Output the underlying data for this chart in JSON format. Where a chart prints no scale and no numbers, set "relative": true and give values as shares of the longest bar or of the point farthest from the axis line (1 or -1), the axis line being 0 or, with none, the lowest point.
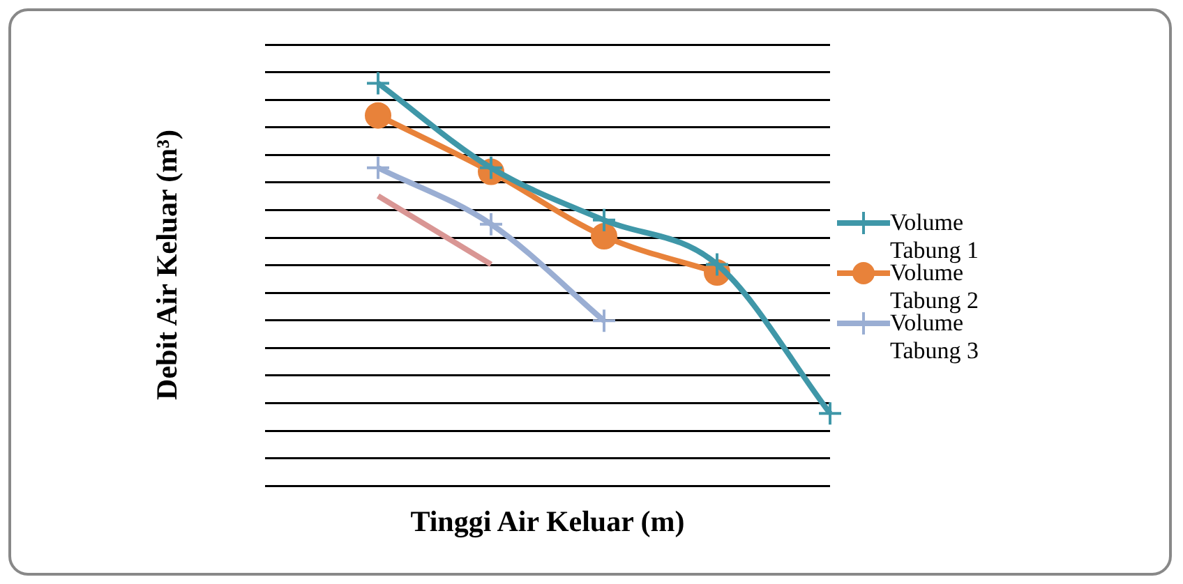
{
  "chart_data": {
    "type": "line",
    "relative": true,
    "xlabel": "Tinggi Air Keluar (m)",
    "ylabel": "Debit Air Keluar (m³)",
    "categories": [
      null,
      null,
      null,
      null,
      null,
      null
    ],
    "series": [
      {
        "name": "Volume Tabung 1",
        "color": "#3f97a8",
        "marker": "cross",
        "values": [
          null,
          1,
          0.79,
          0.66,
          0.55,
          0.18
        ]
      },
      {
        "name": "Volume Tabung 2",
        "color": "#e8823a",
        "marker": "circle",
        "values": [
          null,
          0.92,
          0.78,
          0.62,
          0.53,
          null
        ]
      },
      {
        "name": "Volume Tabung 3",
        "color": "#9aaed3",
        "marker": "cross",
        "values": [
          null,
          0.79,
          0.65,
          0.41,
          null,
          null
        ]
      },
      {
        "color": "#d99694",
        "marker": "none",
        "values": [
          null,
          0.72,
          0.55,
          null,
          null,
          null
        ]
      }
    ],
    "grid": "y",
    "legend": "right",
    "line_style": "solid"
  }
}
